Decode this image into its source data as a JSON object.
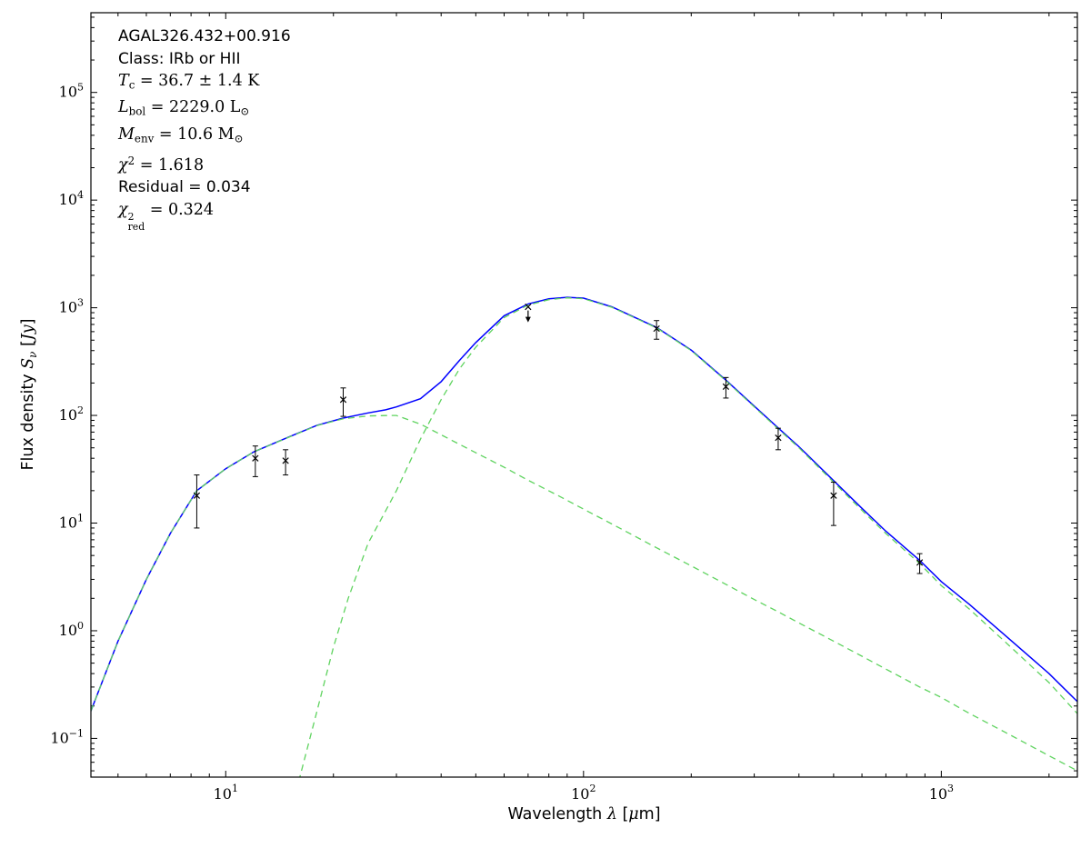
{
  "page": {
    "background": "#ffffff"
  },
  "annotation": {
    "lines": [
      {
        "cls": "plain",
        "seg": [
          {
            "t": "AGAL326.432+00.916"
          }
        ]
      },
      {
        "cls": "plain",
        "seg": [
          {
            "t": "Class: IRb or HII"
          }
        ]
      },
      {
        "cls": "math",
        "seg": [
          {
            "t": "T",
            "s": "i"
          },
          {
            "t": "c",
            "s": "sub"
          },
          {
            "t": " = 36.7 ± 1.4 K"
          }
        ]
      },
      {
        "cls": "math",
        "seg": [
          {
            "t": "L",
            "s": "i"
          },
          {
            "t": "bol",
            "s": "sub"
          },
          {
            "t": " = 2229.0 L"
          },
          {
            "t": "⊙",
            "s": "sub"
          }
        ]
      },
      {
        "cls": "math",
        "seg": [
          {
            "t": "M",
            "s": "i"
          },
          {
            "t": "env",
            "s": "sub"
          },
          {
            "t": " = 10.6 M"
          },
          {
            "t": "⊙",
            "s": "sub"
          }
        ]
      },
      {
        "cls": "math",
        "seg": [
          {
            "t": "χ",
            "s": "i"
          },
          {
            "t": "2",
            "s": "sup"
          },
          {
            "t": " = 1.618"
          }
        ]
      },
      {
        "cls": "plain",
        "seg": [
          {
            "t": "Residual = 0.034"
          }
        ]
      },
      {
        "cls": "math",
        "seg": [
          {
            "t": "χ",
            "s": "i"
          },
          {
            "t": "2|red",
            "s": "stack"
          },
          {
            "t": " = 0.324"
          }
        ]
      }
    ]
  },
  "axes": {
    "xlabel": {
      "seg": [
        {
          "t": "Wavelength "
        },
        {
          "t": "λ",
          "s": "i"
        },
        {
          "t": " ["
        },
        {
          "t": "μ",
          "s": "i"
        },
        {
          "t": "m]"
        }
      ]
    },
    "ylabel": {
      "seg": [
        {
          "t": "Flux density "
        },
        {
          "t": "S",
          "s": "i"
        },
        {
          "t": "ν",
          "s": "subi"
        },
        {
          "t": " ["
        },
        {
          "t": "Jy",
          "s": "i"
        },
        {
          "t": "]"
        }
      ]
    }
  },
  "chart_data": {
    "type": "line",
    "title": "",
    "xscale": "log",
    "yscale": "log",
    "grid": false,
    "legend": false,
    "xlim": [
      4.2,
      2400
    ],
    "ylim": [
      0.0437,
      550000
    ],
    "x_major_ticks": [
      {
        "value": 10,
        "base": "10",
        "exp": "1"
      },
      {
        "value": 100,
        "base": "10",
        "exp": "2"
      },
      {
        "value": 1000,
        "base": "10",
        "exp": "3"
      }
    ],
    "y_major_ticks": [
      {
        "value": 0.1,
        "base": "10",
        "exp": "−1"
      },
      {
        "value": 1,
        "base": "10",
        "exp": "0"
      },
      {
        "value": 10,
        "base": "10",
        "exp": "1"
      },
      {
        "value": 100,
        "base": "10",
        "exp": "2"
      },
      {
        "value": 1000,
        "base": "10",
        "exp": "3"
      },
      {
        "value": 10000,
        "base": "10",
        "exp": "4"
      },
      {
        "value": 100000,
        "base": "10",
        "exp": "5"
      }
    ],
    "series": [
      {
        "name": "total-model-curve",
        "label": "total SED fit",
        "color": "#0000ff",
        "width": 1.5,
        "dash": "",
        "x": [
          4.2,
          5,
          6,
          7,
          8.3,
          10,
          12,
          15,
          18,
          21.3,
          25,
          28,
          30,
          35,
          40,
          45,
          50,
          60,
          70,
          80,
          90,
          100,
          120,
          160,
          200,
          250,
          300,
          350,
          400,
          500,
          600,
          700,
          870,
          1000,
          1200,
          1500,
          2000,
          2400
        ],
        "y": [
          0.18,
          0.8,
          3,
          8,
          20,
          32,
          46,
          63,
          81,
          94.4,
          105.5,
          112.8,
          120,
          143,
          206,
          324,
          475,
          843,
          1085,
          1210,
          1251,
          1229,
          1020,
          656,
          404,
          213,
          122,
          76.5,
          51.2,
          24.8,
          13.7,
          8.4,
          4.5,
          2.86,
          1.75,
          0.92,
          0.4,
          0.22
        ]
      },
      {
        "name": "warm-component-curve",
        "label": "warm component",
        "color": "#5fd35f",
        "width": 1.3,
        "dash": "7 5",
        "x": [
          4.2,
          5,
          6,
          7,
          8.3,
          10,
          12,
          15,
          18,
          21.3,
          25,
          28,
          30,
          35,
          40,
          45,
          50,
          60,
          70,
          85,
          100,
          120,
          160,
          200,
          250,
          300,
          350,
          400,
          500,
          600,
          700,
          870,
          1000,
          1200,
          1500,
          2000,
          2400
        ],
        "y": [
          0.18,
          0.8,
          3,
          8,
          20,
          32,
          46,
          62.7,
          80.5,
          93,
          99,
          99.8,
          100,
          83,
          66,
          54,
          45,
          33,
          25,
          18,
          13.5,
          9.8,
          5.9,
          4.0,
          2.7,
          1.95,
          1.5,
          1.18,
          0.8,
          0.58,
          0.44,
          0.3,
          0.24,
          0.17,
          0.115,
          0.069,
          0.05
        ]
      },
      {
        "name": "cold-component-curve",
        "label": "cold component",
        "color": "#5fd35f",
        "width": 1.3,
        "dash": "7 5",
        "x": [
          16,
          18,
          20,
          22,
          25,
          28,
          30,
          35,
          40,
          45,
          50,
          60,
          70,
          80,
          90,
          100,
          120,
          160,
          200,
          250,
          300,
          350,
          400,
          500,
          600,
          700,
          870,
          1000,
          1200,
          1500,
          2000,
          2400
        ],
        "y": [
          0.04,
          0.18,
          0.7,
          2,
          6.5,
          13,
          20,
          60,
          140,
          270,
          430,
          810,
          1060,
          1190,
          1235,
          1215,
          1010,
          650,
          400,
          210,
          120,
          75,
          50,
          24,
          13.1,
          8,
          4.2,
          2.62,
          1.58,
          0.8,
          0.33,
          0.17
        ]
      }
    ],
    "points": [
      {
        "lam": 8.3,
        "flux": 18,
        "err_lo": 9,
        "err_hi": 10
      },
      {
        "lam": 12.1,
        "flux": 40,
        "err_lo": 13,
        "err_hi": 12
      },
      {
        "lam": 14.7,
        "flux": 38,
        "err_lo": 10,
        "err_hi": 10
      },
      {
        "lam": 21.3,
        "flux": 140,
        "err_lo": 42,
        "err_hi": 40
      },
      {
        "lam": 70,
        "flux": 1020,
        "err_lo": 0,
        "err_hi": 0,
        "upper_limit": true
      },
      {
        "lam": 160,
        "flux": 640,
        "err_lo": 130,
        "err_hi": 120
      },
      {
        "lam": 250,
        "flux": 185,
        "err_lo": 40,
        "err_hi": 40
      },
      {
        "lam": 350,
        "flux": 62,
        "err_lo": 14,
        "err_hi": 14
      },
      {
        "lam": 500,
        "flux": 18,
        "err_lo": 8.5,
        "err_hi": 6
      },
      {
        "lam": 870,
        "flux": 4.3,
        "err_lo": 0.9,
        "err_hi": 0.9
      }
    ],
    "marker": {
      "symbol": "x",
      "color": "#000000",
      "capsize": 3
    }
  }
}
